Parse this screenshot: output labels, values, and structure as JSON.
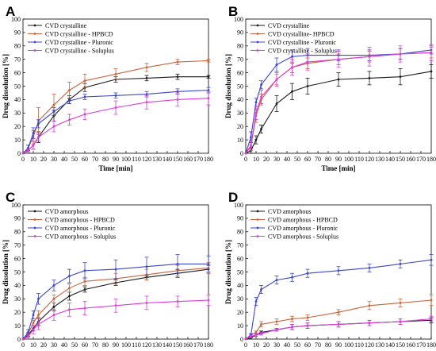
{
  "chart_data": [
    {
      "type": "line",
      "panel_label": "A",
      "xlabel": "Time [min]",
      "ylabel": "Drug dissolution [%]",
      "xlim": [
        0,
        180
      ],
      "ylim": [
        0,
        100
      ],
      "xticks": [
        0,
        10,
        20,
        30,
        40,
        50,
        60,
        70,
        80,
        90,
        100,
        110,
        120,
        130,
        140,
        150,
        160,
        170,
        180
      ],
      "yticks": [
        0,
        10,
        20,
        30,
        40,
        50,
        60,
        70,
        80,
        90,
        100
      ],
      "legend_position": "top-left",
      "x": [
        0,
        5,
        10,
        15,
        30,
        45,
        60,
        90,
        120,
        150,
        180
      ],
      "series": [
        {
          "name": "CVD crystalline",
          "color": "#1a1a1a",
          "values": [
            0,
            2,
            6,
            12,
            28,
            40,
            49,
            55,
            56,
            57,
            57
          ],
          "errors": [
            0,
            1,
            3,
            4,
            4,
            3,
            3,
            2,
            2,
            2,
            1
          ]
        },
        {
          "name": "CVD crystalline - HPBCD",
          "color": "#c8643c",
          "values": [
            0,
            4,
            12,
            24,
            36,
            47,
            54,
            59,
            64,
            68,
            69
          ],
          "errors": [
            0,
            2,
            5,
            10,
            8,
            6,
            5,
            4,
            3,
            2,
            1
          ]
        },
        {
          "name": "CVD crystalline - Pluronic",
          "color": "#3c46c8",
          "values": [
            0,
            4,
            15,
            22,
            31,
            39,
            42,
            43,
            44,
            46,
            47
          ],
          "errors": [
            0,
            2,
            4,
            3,
            3,
            2,
            2,
            2,
            2,
            2,
            2
          ]
        },
        {
          "name": "CVD crystalline - Soluplus",
          "color": "#dc3cdc",
          "values": [
            0,
            2,
            6,
            12,
            20,
            25,
            29,
            34,
            38,
            40,
            41
          ],
          "errors": [
            0,
            1,
            3,
            3,
            4,
            4,
            4,
            5,
            5,
            5,
            5
          ]
        }
      ]
    },
    {
      "type": "line",
      "panel_label": "B",
      "xlabel": "Time [min]",
      "ylabel": "Drug dissolution [%]",
      "xlim": [
        0,
        180
      ],
      "ylim": [
        0,
        100
      ],
      "xticks": [
        0,
        10,
        20,
        30,
        40,
        50,
        60,
        70,
        80,
        90,
        100,
        110,
        120,
        130,
        140,
        150,
        160,
        170,
        180
      ],
      "yticks": [
        0,
        10,
        20,
        30,
        40,
        50,
        60,
        70,
        80,
        90,
        100
      ],
      "legend_position": "top-left",
      "x": [
        0,
        5,
        10,
        15,
        30,
        45,
        60,
        90,
        120,
        150,
        180
      ],
      "series": [
        {
          "name": "CVD crystalline",
          "color": "#1a1a1a",
          "values": [
            0,
            2,
            10,
            18,
            37,
            46,
            50,
            55,
            56,
            57,
            61
          ],
          "errors": [
            0,
            2,
            3,
            3,
            6,
            6,
            6,
            5,
            5,
            6,
            5
          ]
        },
        {
          "name": "CVD crystalline- HPBCD",
          "color": "#c8643c",
          "values": [
            0,
            5,
            28,
            40,
            55,
            64,
            67,
            70,
            72,
            74,
            75
          ],
          "errors": [
            0,
            3,
            5,
            4,
            4,
            4,
            4,
            4,
            4,
            4,
            4
          ]
        },
        {
          "name": "CVD crystalline - Pluronic",
          "color": "#3c46c8",
          "values": [
            0,
            12,
            38,
            51,
            66,
            72,
            73,
            73,
            73,
            74,
            77
          ],
          "errors": [
            0,
            4,
            3,
            3,
            5,
            5,
            5,
            4,
            4,
            4,
            3
          ]
        },
        {
          "name": "CVD crystalline - Soluplus",
          "color": "#dc3cdc",
          "values": [
            0,
            6,
            30,
            42,
            55,
            64,
            68,
            70,
            72,
            74,
            75
          ],
          "errors": [
            0,
            3,
            5,
            5,
            5,
            6,
            6,
            6,
            7,
            6,
            6
          ]
        }
      ]
    },
    {
      "type": "line",
      "panel_label": "C",
      "xlabel": "Time [min]",
      "ylabel": "Drug dissolution [%]",
      "xlim": [
        0,
        180
      ],
      "ylim": [
        0,
        100
      ],
      "xticks": [
        0,
        10,
        20,
        30,
        40,
        50,
        60,
        70,
        80,
        90,
        100,
        110,
        120,
        130,
        140,
        150,
        160,
        170,
        180
      ],
      "yticks": [
        0,
        10,
        20,
        30,
        40,
        50,
        60,
        70,
        80,
        90,
        100
      ],
      "legend_position": "top-left",
      "x": [
        0,
        5,
        10,
        15,
        30,
        45,
        60,
        90,
        120,
        150,
        180
      ],
      "series": [
        {
          "name": "CVD amorphous",
          "color": "#1a1a1a",
          "values": [
            0,
            3,
            8,
            13,
            24,
            32,
            37,
            42,
            46,
            49,
            52
          ],
          "errors": [
            0,
            1,
            2,
            3,
            3,
            3,
            2,
            2,
            2,
            3,
            3
          ]
        },
        {
          "name": "CVD amorphous - HPBCD",
          "color": "#c8643c",
          "values": [
            0,
            4,
            12,
            18,
            30,
            38,
            43,
            45,
            48,
            51,
            53
          ],
          "errors": [
            0,
            1,
            2,
            3,
            3,
            3,
            3,
            4,
            4,
            4,
            4
          ]
        },
        {
          "name": "CVD amorphous - Pluronic",
          "color": "#3c46c8",
          "values": [
            0,
            5,
            18,
            30,
            40,
            47,
            51,
            52,
            54,
            56,
            56
          ],
          "errors": [
            0,
            2,
            3,
            4,
            4,
            5,
            6,
            7,
            7,
            7,
            6
          ]
        },
        {
          "name": "CVD amorphous - Soluplus",
          "color": "#dc3cdc",
          "values": [
            0,
            2,
            7,
            11,
            18,
            22,
            23,
            25,
            27,
            28,
            29
          ],
          "errors": [
            0,
            1,
            3,
            4,
            4,
            5,
            5,
            5,
            5,
            4,
            4
          ]
        }
      ]
    },
    {
      "type": "line",
      "panel_label": "D",
      "xlabel": "Time [min]",
      "ylabel": "Drug dissolution [%]",
      "xlim": [
        0,
        180
      ],
      "ylim": [
        0,
        100
      ],
      "xticks": [
        0,
        10,
        20,
        30,
        40,
        50,
        60,
        70,
        80,
        90,
        100,
        110,
        120,
        130,
        140,
        150,
        160,
        170,
        180
      ],
      "yticks": [
        0,
        10,
        20,
        30,
        40,
        50,
        60,
        70,
        80,
        90,
        100
      ],
      "legend_position": "top-left",
      "x": [
        0,
        5,
        10,
        15,
        30,
        45,
        60,
        90,
        120,
        150,
        180
      ],
      "series": [
        {
          "name": "CVD amorphous",
          "color": "#1a1a1a",
          "values": [
            0,
            1,
            3,
            5,
            7,
            9,
            10,
            11,
            12,
            13,
            14
          ],
          "errors": [
            0,
            1,
            1,
            1,
            1,
            2,
            2,
            2,
            2,
            2,
            2
          ]
        },
        {
          "name": "CVD amorphous - HPBCD",
          "color": "#c8643c",
          "values": [
            0,
            3,
            5,
            11,
            13,
            15,
            16,
            20,
            25,
            27,
            29
          ],
          "errors": [
            0,
            1,
            1,
            2,
            2,
            2,
            2,
            2,
            3,
            3,
            4
          ]
        },
        {
          "name": "CVD amorphous - Pluronic",
          "color": "#3c46c8",
          "values": [
            0,
            3,
            28,
            37,
            44,
            46,
            49,
            51,
            53,
            56,
            59
          ],
          "errors": [
            0,
            1,
            3,
            3,
            3,
            3,
            3,
            3,
            3,
            3,
            4
          ]
        },
        {
          "name": "CVD amorphous - Soluplus",
          "color": "#dc3cdc",
          "values": [
            0,
            2,
            3,
            4,
            7,
            9,
            10,
            11,
            12,
            13,
            15
          ],
          "errors": [
            0,
            1,
            1,
            1,
            1,
            2,
            2,
            2,
            2,
            2,
            2
          ]
        }
      ]
    }
  ]
}
